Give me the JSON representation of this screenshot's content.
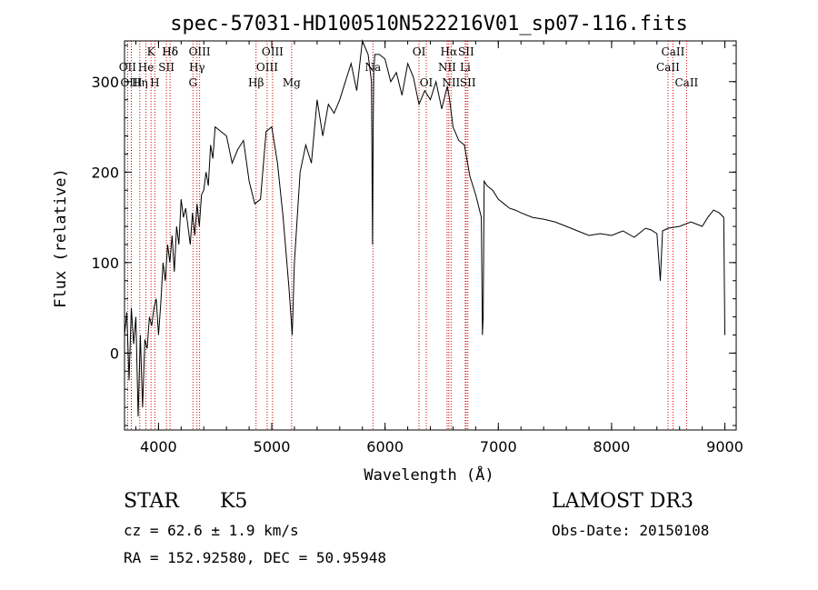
{
  "chart_data": {
    "type": "line",
    "title": "spec-57031-HD100510N522216V01_sp07-116.fits",
    "xlabel": "Wavelength (Å)",
    "ylabel": "Flux (relative)",
    "xlim": [
      3700,
      9100
    ],
    "ylim": [
      -85,
      345
    ],
    "x_ticks": [
      4000,
      5000,
      6000,
      7000,
      8000,
      9000
    ],
    "x_tick_labels": [
      "4000",
      "5000",
      "6000",
      "7000",
      "8000",
      "9000"
    ],
    "y_ticks": [
      0,
      100,
      200,
      300
    ],
    "y_tick_labels": [
      "0",
      "100",
      "200",
      "300"
    ],
    "grid": false,
    "series": [
      {
        "x": [
          3700,
          3720,
          3740,
          3760,
          3780,
          3800,
          3820,
          3840,
          3860,
          3880,
          3900,
          3920,
          3940,
          3960,
          3980,
          4000,
          4020,
          4040,
          4060,
          4080,
          4100,
          4120,
          4140,
          4160,
          4180,
          4200,
          4220,
          4240,
          4260,
          4280,
          4300,
          4320,
          4340,
          4360,
          4380,
          4400,
          4420,
          4440,
          4460,
          4480,
          4500,
          4550,
          4600,
          4650,
          4700,
          4750,
          4800,
          4850,
          4900,
          4950,
          5000,
          5050,
          5100,
          5150,
          5170,
          5180,
          5190,
          5200,
          5250,
          5300,
          5350,
          5400,
          5450,
          5500,
          5550,
          5600,
          5650,
          5700,
          5750,
          5800,
          5850,
          5880,
          5890,
          5895,
          5900,
          5910,
          5950,
          6000,
          6050,
          6100,
          6150,
          6200,
          6250,
          6300,
          6350,
          6400,
          6450,
          6500,
          6550,
          6570,
          6600,
          6650,
          6700,
          6750,
          6800,
          6850,
          6860,
          6866,
          6875,
          6900,
          6950,
          7000,
          7050,
          7100,
          7150,
          7200,
          7300,
          7400,
          7500,
          7600,
          7700,
          7800,
          7900,
          8000,
          8100,
          8200,
          8300,
          8350,
          8400,
          8430,
          8450,
          8500,
          8600,
          8700,
          8800,
          8850,
          8900,
          8950,
          8990,
          9000
        ],
        "y": [
          20,
          45,
          -30,
          50,
          10,
          40,
          -70,
          20,
          -60,
          15,
          5,
          40,
          30,
          50,
          60,
          20,
          55,
          100,
          80,
          120,
          100,
          130,
          90,
          140,
          120,
          170,
          150,
          160,
          140,
          120,
          155,
          130,
          165,
          140,
          175,
          180,
          200,
          185,
          230,
          215,
          250,
          245,
          240,
          210,
          225,
          235,
          190,
          165,
          170,
          245,
          250,
          210,
          150,
          75,
          40,
          20,
          60,
          100,
          200,
          230,
          210,
          280,
          240,
          275,
          265,
          280,
          300,
          320,
          290,
          355,
          330,
          300,
          120,
          250,
          310,
          330,
          330,
          325,
          300,
          310,
          285,
          320,
          305,
          275,
          290,
          280,
          300,
          270,
          295,
          280,
          250,
          235,
          230,
          195,
          175,
          150,
          20,
          40,
          190,
          185,
          180,
          170,
          165,
          160,
          158,
          155,
          150,
          148,
          145,
          140,
          135,
          130,
          132,
          130,
          135,
          128,
          138,
          136,
          132,
          80,
          135,
          138,
          140,
          145,
          140,
          150,
          158,
          155,
          150,
          20
        ]
      }
    ],
    "line_labels": [
      {
        "text": "Hδ",
        "x": 4102,
        "row": 1
      },
      {
        "text": "OII",
        "x": 3727,
        "row": 2
      },
      {
        "text": "OIII",
        "x": 3760,
        "row": 3
      },
      {
        "text": "He",
        "x": 3889,
        "row": 2
      },
      {
        "text": "Hη",
        "x": 3835,
        "row": 3
      },
      {
        "text": "K",
        "x": 3934,
        "row": 1
      },
      {
        "text": "SII",
        "x": 4070,
        "row": 2
      },
      {
        "text": "H",
        "x": 3968,
        "row": 3
      },
      {
        "text": "Hδ",
        "x": 4102,
        "row": 1
      },
      {
        "text": "OIII",
        "x": 4363,
        "row": 1
      },
      {
        "text": "Hγ",
        "x": 4340,
        "row": 2
      },
      {
        "text": "G",
        "x": 4304,
        "row": 3
      },
      {
        "text": "Hβ",
        "x": 4861,
        "row": 3
      },
      {
        "text": "OIII",
        "x": 5007,
        "row": 1
      },
      {
        "text": "OIII",
        "x": 4959,
        "row": 2
      },
      {
        "text": "Mg",
        "x": 5175,
        "row": 3
      },
      {
        "text": "Na",
        "x": 5893,
        "row": 2
      },
      {
        "text": "OI",
        "x": 6300,
        "row": 1
      },
      {
        "text": "OI",
        "x": 6364,
        "row": 3
      },
      {
        "text": "Hα",
        "x": 6563,
        "row": 1
      },
      {
        "text": "SII",
        "x": 6716,
        "row": 1
      },
      {
        "text": "NII",
        "x": 6548,
        "row": 2
      },
      {
        "text": "Li",
        "x": 6708,
        "row": 2
      },
      {
        "text": "NII",
        "x": 6583,
        "row": 3
      },
      {
        "text": "SII",
        "x": 6731,
        "row": 3
      },
      {
        "text": "CaII",
        "x": 8542,
        "row": 1
      },
      {
        "text": "CaII",
        "x": 8498,
        "row": 2
      },
      {
        "text": "CaII",
        "x": 8662,
        "row": 3
      }
    ],
    "line_marks": [
      3727,
      3760,
      3835,
      3889,
      3934,
      3968,
      4070,
      4102,
      4304,
      4340,
      4363,
      4861,
      4959,
      5007,
      5175,
      5893,
      6300,
      6364,
      6548,
      6563,
      6583,
      6708,
      6716,
      6731,
      8498,
      8542,
      8662
    ],
    "line_mark_color": "#cc0000",
    "curve_color": "#000000"
  },
  "info": {
    "object_class": "STAR",
    "subclass": "K5",
    "survey": "LAMOST DR3",
    "cz": "cz = 62.6 ± 1.9 km/s",
    "obs_date": "Obs-Date: 20150108",
    "coords": "RA = 152.92580, DEC =  50.95948"
  }
}
